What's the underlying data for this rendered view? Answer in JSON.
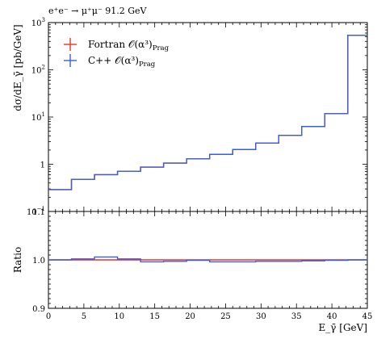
{
  "chart_data": [
    {
      "type": "line",
      "panel": "main",
      "title": "e⁺e⁻ → μ⁺μ⁻ 91.2 GeV",
      "ylabel": "dσ/dE_γ̄ [pb/GeV]",
      "yscale": "log",
      "ylim": [
        0.1,
        1000
      ],
      "xlim": [
        0,
        45
      ],
      "x_tick_labels": [],
      "y_ticks": [
        {
          "value": 1000,
          "base": "10",
          "exp": "3"
        },
        {
          "value": 100,
          "base": "10",
          "exp": "2"
        },
        {
          "value": 10,
          "base": "10",
          "exp": "1"
        },
        {
          "value": 1,
          "base": "1",
          "exp": ""
        },
        {
          "value": 0.1,
          "base": "10",
          "exp": "−1"
        }
      ],
      "legend_position": "top-left",
      "bin_edges": [
        0,
        3.25,
        6.5,
        9.75,
        13,
        16.25,
        19.5,
        22.75,
        26,
        29.25,
        32.5,
        35.75,
        39,
        42.25,
        45
      ],
      "series": [
        {
          "name": "Fortran 𝒪(α³)",
          "name_sub": "Prag",
          "color": "#e8322b",
          "values": [
            0.29,
            0.48,
            0.6,
            0.71,
            0.87,
            1.06,
            1.3,
            1.62,
            2.05,
            2.8,
            4.1,
            6.3,
            11.8,
            540
          ]
        },
        {
          "name": "C++ 𝒪(α³)",
          "name_sub": "Prag",
          "color": "#3a5ed9",
          "values": [
            0.29,
            0.48,
            0.6,
            0.71,
            0.87,
            1.06,
            1.3,
            1.62,
            2.05,
            2.8,
            4.1,
            6.3,
            11.8,
            540
          ]
        }
      ]
    },
    {
      "type": "line",
      "panel": "ratio",
      "ylabel": "Ratio",
      "xlabel": "E_γ̄ [GeV]",
      "ylim": [
        0.9,
        1.1
      ],
      "xlim": [
        0,
        45
      ],
      "y_tick_labels": [
        "0.9",
        "1.0",
        "1.1"
      ],
      "x_tick_labels": [
        "0",
        "5",
        "10",
        "15",
        "20",
        "25",
        "30",
        "35",
        "40",
        "45"
      ],
      "bin_edges": [
        0,
        3.25,
        6.5,
        9.75,
        13,
        16.25,
        19.5,
        22.75,
        26,
        29.25,
        32.5,
        35.75,
        39,
        42.25,
        45
      ],
      "series": [
        {
          "name": "Fortran 𝒪(α³)",
          "color": "#e8322b",
          "values": [
            1.0,
            1.0,
            1.0,
            1.0,
            1.0,
            1.0,
            1.0,
            1.0,
            1.0,
            1.0,
            1.0,
            1.0,
            1.0,
            1.0
          ]
        },
        {
          "name": "C++ 𝒪(α³)",
          "color": "#3a5ed9",
          "values": [
            1.0,
            1.002,
            1.006,
            1.002,
            0.996,
            0.997,
            0.999,
            0.996,
            0.996,
            0.997,
            0.997,
            0.998,
            0.999,
            1.0
          ]
        }
      ]
    }
  ]
}
